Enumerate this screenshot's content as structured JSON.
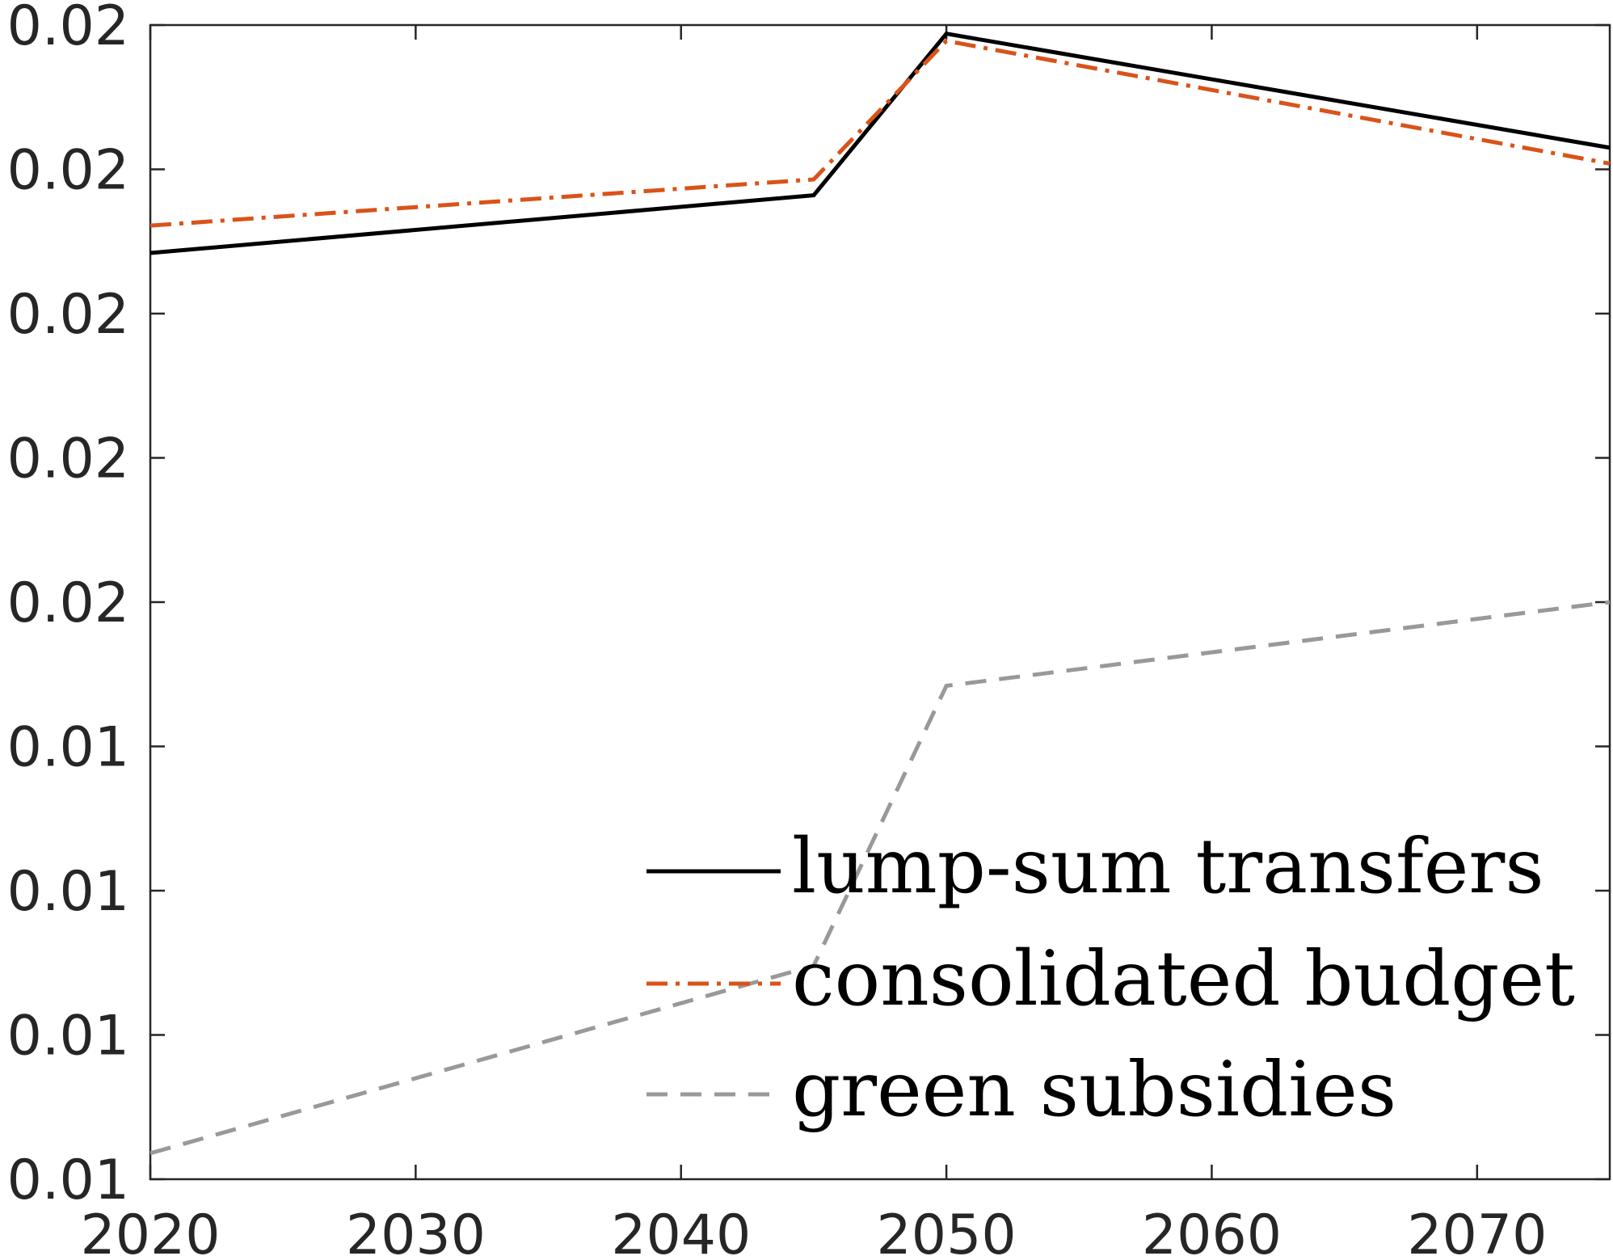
{
  "chart_data": {
    "type": "line",
    "x": [
      2020,
      2045,
      2050,
      2075
    ],
    "xlim": [
      2020,
      2075
    ],
    "ylim": [
      0,
      8
    ],
    "xticks": [
      2020,
      2030,
      2040,
      2050,
      2060,
      2070
    ],
    "yticks": [
      {
        "value": 0,
        "label": "0.01"
      },
      {
        "value": 1,
        "label": "0.01"
      },
      {
        "value": 2,
        "label": "0.01"
      },
      {
        "value": 3,
        "label": "0.01"
      },
      {
        "value": 4,
        "label": "0.02"
      },
      {
        "value": 5,
        "label": "0.02"
      },
      {
        "value": 6,
        "label": "0.02"
      },
      {
        "value": 7,
        "label": "0.02"
      },
      {
        "value": 8,
        "label": "0.02"
      }
    ],
    "series": [
      {
        "name": "lump-sum transfers",
        "x": [
          2020,
          2045,
          2050,
          2075
        ],
        "values": [
          6.42,
          6.82,
          7.94,
          7.15
        ],
        "color": "#000000",
        "style": "solid"
      },
      {
        "name": "consolidated budget",
        "x": [
          2020,
          2045,
          2050,
          2075
        ],
        "values": [
          6.61,
          6.93,
          7.89,
          7.04
        ],
        "color": "#d95319",
        "style": "dashdot"
      },
      {
        "name": "green subsidies",
        "x": [
          2020,
          2045,
          2050,
          2075
        ],
        "values": [
          0.18,
          1.48,
          3.42,
          4.0
        ],
        "color": "#999999",
        "style": "dashed"
      }
    ],
    "legend": {
      "position": "bottom-right"
    },
    "grid": false,
    "title": "",
    "xlabel": "",
    "ylabel": ""
  }
}
